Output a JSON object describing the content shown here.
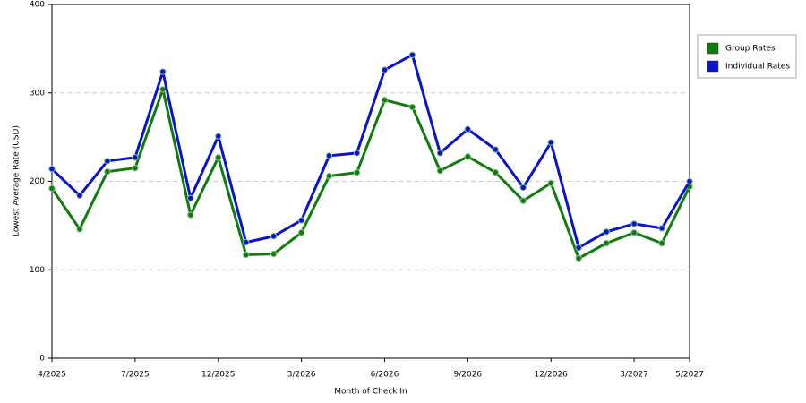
{
  "chart_data": {
    "type": "line",
    "x_label": "Month of Check In",
    "y_label": "Lowest Average Rate (USD)",
    "categories": [
      "4/2025",
      null,
      null,
      "7/2025",
      null,
      null,
      "12/2025",
      null,
      null,
      "3/2026",
      null,
      null,
      "6/2026",
      null,
      null,
      "9/2026",
      null,
      null,
      "12/2026",
      null,
      null,
      "3/2027",
      null,
      "5/2027"
    ],
    "series": [
      {
        "name": "Group Rates",
        "color": "#107c10",
        "values": [
          192,
          146,
          211,
          215,
          304,
          162,
          227,
          117,
          118,
          142,
          206,
          210,
          292,
          284,
          212,
          228,
          210,
          178,
          198,
          113,
          130,
          142,
          130,
          194
        ]
      },
      {
        "name": "Individual Rates",
        "color": "#0a14c8",
        "values": [
          214,
          184,
          223,
          227,
          324,
          181,
          251,
          131,
          138,
          156,
          229,
          232,
          326,
          343,
          232,
          259,
          236,
          193,
          244,
          125,
          143,
          152,
          147,
          200
        ]
      }
    ],
    "ylim": [
      0,
      400
    ],
    "yticks": [
      0,
      100,
      200,
      300,
      400
    ],
    "grid": true,
    "legend": "right"
  }
}
